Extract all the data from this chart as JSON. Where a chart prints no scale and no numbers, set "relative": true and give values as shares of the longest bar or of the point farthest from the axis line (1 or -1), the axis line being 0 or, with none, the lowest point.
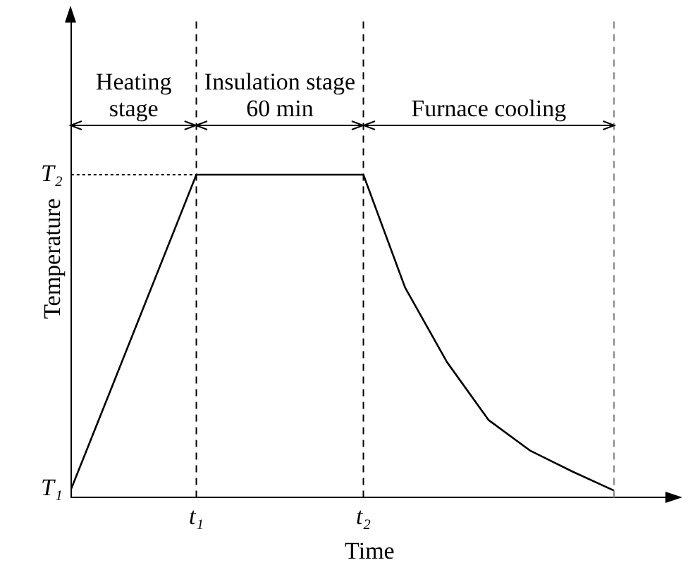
{
  "chart_data": {
    "type": "line",
    "xlabel": "Time",
    "ylabel": "Temperature",
    "relative": true,
    "categories": [
      null,
      null,
      null,
      "t₁",
      null,
      null,
      null,
      "t₂",
      null,
      null,
      null,
      null,
      null,
      null
    ],
    "series": [
      {
        "color": "#000000",
        "values": [
          0.026,
          0.35,
          0.675,
          1,
          1,
          1,
          1,
          1,
          0.65,
          0.42,
          0.24,
          0.145,
          0.081,
          0.022
        ]
      }
    ],
    "ref_lines": [
      {
        "axis": "y",
        "value": 1,
        "line_style": "dotted",
        "label": "T₂"
      },
      {
        "axis": "x",
        "value": "t₁",
        "line_style": "dashed"
      },
      {
        "axis": "x",
        "value": "t₂",
        "line_style": "dashed"
      }
    ],
    "annotations": [
      "Heating stage",
      "Insulation stage 60 min",
      "Furnace cooling",
      "T₁"
    ],
    "legend": false,
    "marker": "none",
    "line_style": "solid"
  }
}
